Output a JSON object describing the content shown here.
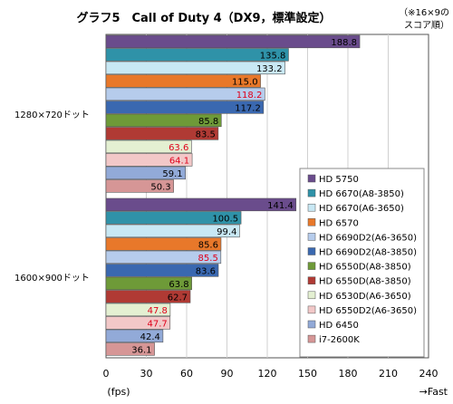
{
  "chart_data": {
    "type": "bar",
    "orientation": "horizontal",
    "title": "グラフ5　Call of Duty 4（DX9，標準設定）",
    "note_line1": "（※16×9の",
    "note_line2": "スコア順）",
    "xlabel": "(fps)",
    "x_direction_label": "→Fast",
    "xlim": [
      0,
      240
    ],
    "xticks": [
      0,
      30,
      60,
      90,
      120,
      150,
      180,
      210,
      240
    ],
    "grid": true,
    "legend_position": "right",
    "groups": [
      "1280×720ドット",
      "1600×900ドット"
    ],
    "series": [
      {
        "name": "HD 5750",
        "color": "#6a4c8c",
        "label_color": "#000000",
        "values": [
          188.8,
          141.4
        ]
      },
      {
        "name": "HD 6670(A8-3850)",
        "color": "#2f92a8",
        "label_color": "#000000",
        "values": [
          135.8,
          100.5
        ]
      },
      {
        "name": "HD 6670(A6-3650)",
        "color": "#c8e8f4",
        "label_color": "#000000",
        "values": [
          133.2,
          99.4
        ]
      },
      {
        "name": "HD 6570",
        "color": "#e8782a",
        "label_color": "#000000",
        "values": [
          115.0,
          85.6
        ]
      },
      {
        "name": "HD 6690D2(A6-3650)",
        "color": "#b6ccec",
        "label_color": "#e0001a",
        "values": [
          118.2,
          85.5
        ]
      },
      {
        "name": "HD 6690D2(A8-3850)",
        "color": "#3a68b0",
        "label_color": "#000000",
        "values": [
          117.2,
          83.6
        ]
      },
      {
        "name": "HD 6550D(A8-3850)",
        "color": "#6e9a38",
        "label_color": "#000000",
        "values": [
          85.8,
          63.8
        ]
      },
      {
        "name": "HD 6550D(A8-3850)",
        "color": "#b03a34",
        "label_color": "#000000",
        "values": [
          83.5,
          62.7
        ]
      },
      {
        "name": "HD 6530D(A6-3650)",
        "color": "#e4f0d2",
        "label_color": "#e0001a",
        "values": [
          63.6,
          47.8
        ]
      },
      {
        "name": "HD 6550D2(A6-3650)",
        "color": "#f2c8c8",
        "label_color": "#e0001a",
        "values": [
          64.1,
          47.7
        ]
      },
      {
        "name": "HD 6450",
        "color": "#92aad8",
        "label_color": "#000000",
        "values": [
          59.1,
          42.4
        ]
      },
      {
        "name": "i7-2600K",
        "color": "#d69696",
        "label_color": "#000000",
        "values": [
          50.3,
          36.1
        ]
      }
    ]
  }
}
